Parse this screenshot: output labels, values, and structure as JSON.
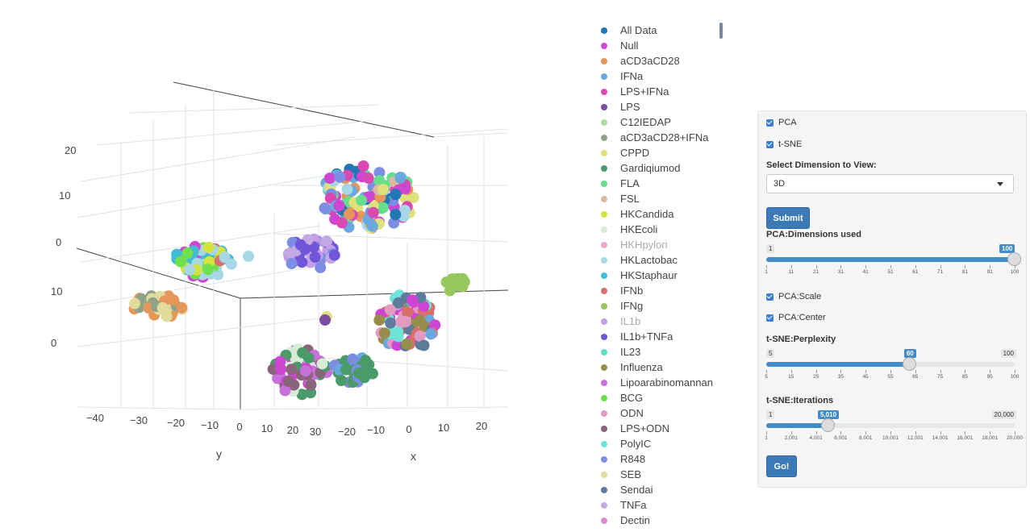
{
  "chart_data": {
    "type": "scatter",
    "subtype": "3d-scatter",
    "axes": {
      "y": {
        "title": "y",
        "tick_labels": [
          "−40",
          "−30",
          "−20",
          "−10",
          "0",
          "10",
          "20",
          "30"
        ]
      },
      "x": {
        "title": "x",
        "tick_labels": [
          "−20",
          "−10",
          "0",
          "10",
          "20"
        ]
      },
      "z": {
        "tick_labels": [
          "20",
          "10",
          "0",
          "10",
          "0"
        ]
      }
    },
    "grid": true,
    "legend_position": "right",
    "series": [
      {
        "name": "All Data",
        "color": "#1f77b4"
      },
      {
        "name": "Null",
        "color": "#cf45d3"
      },
      {
        "name": "aCD3aCD28",
        "color": "#e5975a"
      },
      {
        "name": "IFNa",
        "color": "#6aa9e0"
      },
      {
        "name": "LPS+IFNa",
        "color": "#d949b4"
      },
      {
        "name": "LPS",
        "color": "#7a4d9e"
      },
      {
        "name": "C12IEDAP",
        "color": "#a6dea0"
      },
      {
        "name": "aCD3aCD28+IFNa",
        "color": "#8fa389"
      },
      {
        "name": "CPPD",
        "color": "#dfe27c"
      },
      {
        "name": "Gardiqiumod",
        "color": "#4b9a6a"
      },
      {
        "name": "FLA",
        "color": "#66df8d"
      },
      {
        "name": "FSL",
        "color": "#d9b9a0"
      },
      {
        "name": "HKCandida",
        "color": "#d5e33d"
      },
      {
        "name": "HKEcoli",
        "color": "#d7ecd6"
      },
      {
        "name": "HKHpylori",
        "color": "#efa9c8",
        "dim": true
      },
      {
        "name": "HKLactobac",
        "color": "#a7d6e4"
      },
      {
        "name": "HKStaphaur",
        "color": "#42bbd6"
      },
      {
        "name": "IFNb",
        "color": "#d6706c"
      },
      {
        "name": "IFNg",
        "color": "#96c85d"
      },
      {
        "name": "IL1b",
        "color": "#c49de6",
        "dim": true
      },
      {
        "name": "IL1b+TNFa",
        "color": "#7056d9"
      },
      {
        "name": "IL23",
        "color": "#5fdfc6"
      },
      {
        "name": "Influenza",
        "color": "#978d4a"
      },
      {
        "name": "Lipoarabinomannan",
        "color": "#c672da"
      },
      {
        "name": "BCG",
        "color": "#6ee04c"
      },
      {
        "name": "ODN",
        "color": "#e29ac1"
      },
      {
        "name": "LPS+ODN",
        "color": "#8a6478"
      },
      {
        "name": "PolyIC",
        "color": "#6fe3da"
      },
      {
        "name": "R848",
        "color": "#7c8ee3"
      },
      {
        "name": "SEB",
        "color": "#e2dc9c"
      },
      {
        "name": "Sendai",
        "color": "#5d7c9b"
      },
      {
        "name": "TNFa",
        "color": "#c3a9e4"
      },
      {
        "name": "Dectin",
        "color": "#df8bd2"
      }
    ]
  },
  "controls": {
    "pca_label": "PCA",
    "tsne_label": "t-SNE",
    "dimension_label": "Select Dimension to View:",
    "dimension_value": "3D",
    "submit_label": "Submit",
    "pca_dims": {
      "label": "PCA:Dimensions used",
      "min": "1",
      "max": "100",
      "value": "100",
      "fraction": 1.0,
      "ticks": [
        "1",
        "11",
        "21",
        "31",
        "41",
        "51",
        "61",
        "71",
        "81",
        "91",
        "100"
      ]
    },
    "pca_scale_label": "PCA:Scale",
    "pca_center_label": "PCA:Center",
    "perplexity": {
      "label": "t-SNE:Perplexity",
      "min": "5",
      "max": "100",
      "value": "60",
      "fraction": 0.579,
      "ticks": [
        "5",
        "15",
        "25",
        "35",
        "45",
        "55",
        "65",
        "75",
        "85",
        "95",
        "100"
      ]
    },
    "iterations": {
      "label": "t-SNE:Iterations",
      "min": "1",
      "max": "20,000",
      "value": "5,010",
      "fraction": 0.25,
      "ticks": [
        "1",
        "2,001",
        "4,001",
        "6,001",
        "8,001",
        "10,001",
        "12,001",
        "14,001",
        "16,001",
        "18,001",
        "20,000"
      ]
    },
    "go_label": "Go!"
  }
}
